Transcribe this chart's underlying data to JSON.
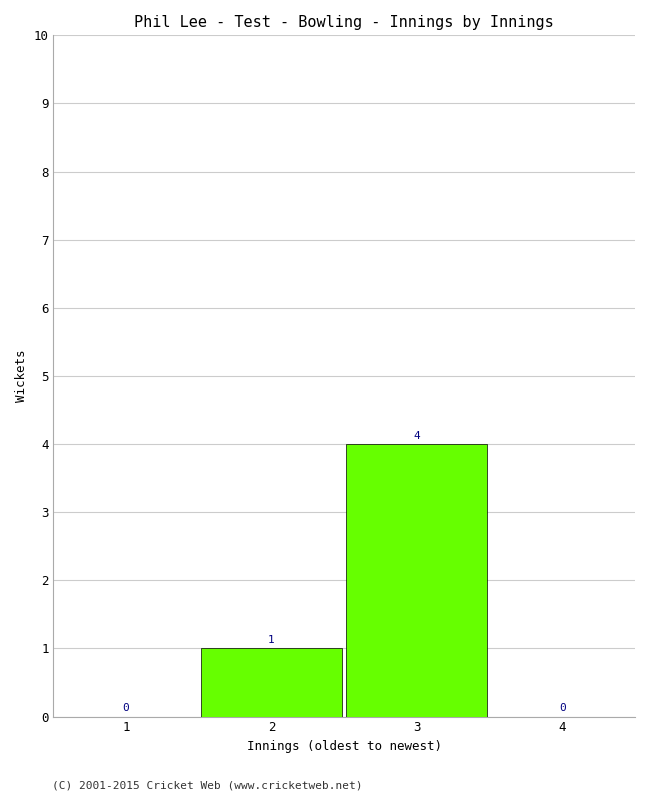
{
  "title": "Phil Lee - Test - Bowling - Innings by Innings",
  "xlabel": "Innings (oldest to newest)",
  "ylabel": "Wickets",
  "categories": [
    1,
    2,
    3,
    4
  ],
  "values": [
    0,
    1,
    4,
    0
  ],
  "bar_color": "#66ff00",
  "bar_edge_color": "#000000",
  "ylim": [
    0,
    10
  ],
  "yticks": [
    0,
    1,
    2,
    3,
    4,
    5,
    6,
    7,
    8,
    9,
    10
  ],
  "xticks": [
    1,
    2,
    3,
    4
  ],
  "annotation_color": "#000080",
  "annotation_fontsize": 8,
  "title_fontsize": 11,
  "axis_label_fontsize": 9,
  "tick_fontsize": 9,
  "background_color": "#ffffff",
  "grid_color": "#cccccc",
  "footer": "(C) 2001-2015 Cricket Web (www.cricketweb.net)",
  "footer_fontsize": 8,
  "bar_width": 0.97
}
